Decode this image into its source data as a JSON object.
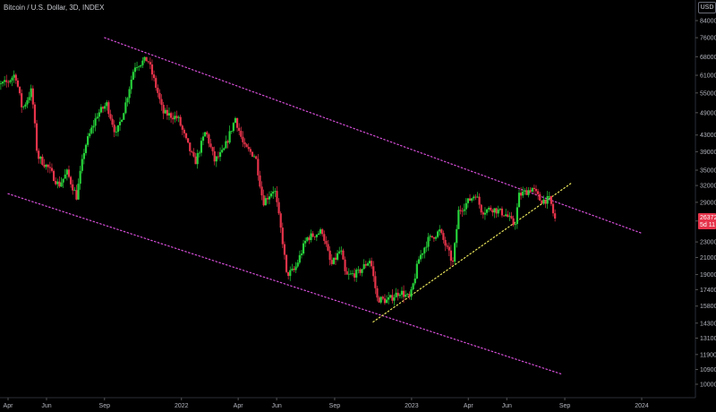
{
  "header": {
    "title": "Bitcoin / U.S. Dollar, 3D, INDEX",
    "currency": "USD"
  },
  "chart_data": {
    "type": "candlestick",
    "symbol": "Bitcoin / U.S. Dollar",
    "interval": "3D",
    "exchange": "INDEX",
    "y_scale": "log",
    "y_ticks": [
      84000,
      76000,
      68000,
      61000,
      55000,
      49000,
      43000,
      39000,
      35000,
      32000,
      29000,
      26000,
      23000,
      21000,
      19000,
      17400,
      15800,
      14300,
      13100,
      11900,
      10900,
      10000
    ],
    "y_tick_labels": [
      "84000",
      "76000",
      "68000",
      "61000",
      "55000",
      "49000",
      "43000",
      "39000",
      "35000",
      "32000",
      "29000",
      "26000",
      "23000",
      "21000",
      "19000",
      "17400",
      "15800",
      "14300",
      "13100",
      "11900",
      "10900",
      "10000"
    ],
    "x_tick_labels": [
      {
        "label": "Apr",
        "date": "2021-04-01"
      },
      {
        "label": "Jun",
        "date": "2021-06-01"
      },
      {
        "label": "Sep",
        "date": "2021-09-01"
      },
      {
        "label": "2022",
        "date": "2022-01-01"
      },
      {
        "label": "Apr",
        "date": "2022-04-01"
      },
      {
        "label": "Jun",
        "date": "2022-06-01"
      },
      {
        "label": "Sep",
        "date": "2022-09-01"
      },
      {
        "label": "2023",
        "date": "2023-01-01"
      },
      {
        "label": "Apr",
        "date": "2023-04-01"
      },
      {
        "label": "Jun",
        "date": "2023-06-01"
      },
      {
        "label": "Sep",
        "date": "2023-09-01"
      },
      {
        "label": "2024",
        "date": "2024-01-01"
      }
    ],
    "x_range": [
      "2021-03-01",
      "2024-04-01"
    ],
    "last_price": "26372",
    "last_price_sub": "5d 11",
    "series_anchors": [
      [
        "2021-03-01",
        55000
      ],
      [
        "2021-03-20",
        57500
      ],
      [
        "2021-04-01",
        58500
      ],
      [
        "2021-04-14",
        61500
      ],
      [
        "2021-04-25",
        50000
      ],
      [
        "2021-05-10",
        56000
      ],
      [
        "2021-05-19",
        38000
      ],
      [
        "2021-06-05",
        35500
      ],
      [
        "2021-06-22",
        32000
      ],
      [
        "2021-07-05",
        34500
      ],
      [
        "2021-07-20",
        30000
      ],
      [
        "2021-08-02",
        40000
      ],
      [
        "2021-08-22",
        48500
      ],
      [
        "2021-09-06",
        51500
      ],
      [
        "2021-09-21",
        43000
      ],
      [
        "2021-10-05",
        51000
      ],
      [
        "2021-10-20",
        64500
      ],
      [
        "2021-11-10",
        67000
      ],
      [
        "2021-11-26",
        55000
      ],
      [
        "2021-12-04",
        49000
      ],
      [
        "2021-12-28",
        47500
      ],
      [
        "2022-01-10",
        41500
      ],
      [
        "2022-01-24",
        36500
      ],
      [
        "2022-02-10",
        44000
      ],
      [
        "2022-02-24",
        37000
      ],
      [
        "2022-03-10",
        39000
      ],
      [
        "2022-03-29",
        47500
      ],
      [
        "2022-04-12",
        40000
      ],
      [
        "2022-04-30",
        38000
      ],
      [
        "2022-05-12",
        29000
      ],
      [
        "2022-05-30",
        31500
      ],
      [
        "2022-06-13",
        22500
      ],
      [
        "2022-06-18",
        19000
      ],
      [
        "2022-07-01",
        19500
      ],
      [
        "2022-07-20",
        23500
      ],
      [
        "2022-08-14",
        24500
      ],
      [
        "2022-08-28",
        20000
      ],
      [
        "2022-09-12",
        22000
      ],
      [
        "2022-09-20",
        18800
      ],
      [
        "2022-10-10",
        19200
      ],
      [
        "2022-10-29",
        20800
      ],
      [
        "2022-11-09",
        16500
      ],
      [
        "2022-11-25",
        16300
      ],
      [
        "2022-12-15",
        17200
      ],
      [
        "2022-12-31",
        16500
      ],
      [
        "2023-01-14",
        20800
      ],
      [
        "2023-01-28",
        23200
      ],
      [
        "2023-02-16",
        24500
      ],
      [
        "2023-03-09",
        20300
      ],
      [
        "2023-03-18",
        27500
      ],
      [
        "2023-04-14",
        30500
      ],
      [
        "2023-04-24",
        27500
      ],
      [
        "2023-05-10",
        28000
      ],
      [
        "2023-06-01",
        27000
      ],
      [
        "2023-06-15",
        25300
      ],
      [
        "2023-06-22",
        30200
      ],
      [
        "2023-07-13",
        31500
      ],
      [
        "2023-07-26",
        29300
      ],
      [
        "2023-08-10",
        29500
      ],
      [
        "2023-08-17",
        26372
      ]
    ],
    "lines": [
      {
        "name": "channel-upper",
        "style": "dotted",
        "color": "#d64fd8",
        "from": [
          "2021-09-01",
          76000
        ],
        "to": [
          "2024-01-01",
          24200
        ]
      },
      {
        "name": "channel-lower",
        "style": "dotted",
        "color": "#d64fd8",
        "from": [
          "2021-04-01",
          30500
        ],
        "to": [
          "2023-08-28",
          10600
        ]
      },
      {
        "name": "support-trendline",
        "style": "dotted",
        "color": "#e8e45a",
        "from": [
          "2022-11-01",
          14400
        ],
        "to": [
          "2023-09-12",
          32500
        ]
      }
    ],
    "colors": {
      "up": "#26d13a",
      "down": "#e6334a",
      "last_price_tag": "#e6334a",
      "background": "#000000"
    },
    "grid": false,
    "legend": "none"
  }
}
